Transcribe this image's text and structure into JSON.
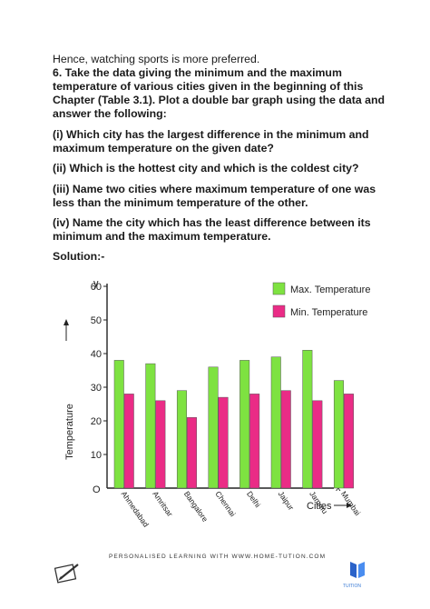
{
  "text": {
    "intro": "Hence, watching sports is more preferred.",
    "question_6": "6. Take the data giving the minimum and the maximum temperature of various cities given in the beginning of this Chapter (Table 3.1). Plot a double bar graph using the data and answer the following:",
    "q_i": "(i) Which city has the largest difference in the minimum and maximum temperature on the given date?",
    "q_ii": "(ii) Which is the hottest city and which is the coldest city?",
    "q_iii": "(iii) Name two cities where maximum temperature of one was less than the minimum temperature of the other.",
    "q_iv": "(iv) Name the city which has the least difference between its minimum and the maximum temperature.",
    "solution": "Solution:-",
    "footer": "PERSONALISED LEARNING WITH WWW.HOME-TUTION.COM",
    "brand": "TUITION"
  },
  "colors": {
    "max": "#7ee241",
    "min": "#ea2c86",
    "axis": "#222222"
  },
  "chart_data": {
    "type": "bar",
    "categories": [
      "Ahmedabad",
      "Amritsar",
      "Bangalore",
      "Chennai",
      "Delhi",
      "Jaipur",
      "Jammu",
      "Mumbai"
    ],
    "series": [
      {
        "name": "Max. Temperature",
        "values": [
          38,
          37,
          29,
          36,
          38,
          39,
          41,
          32
        ]
      },
      {
        "name": "Min. Temperature",
        "values": [
          28,
          26,
          21,
          27,
          28,
          29,
          26,
          28
        ]
      }
    ],
    "ylim": [
      0,
      70
    ],
    "yticks": [
      "10",
      "20",
      "30",
      "40",
      "50",
      "60"
    ],
    "ylabel": "Temperature",
    "xlabel": "Cities",
    "y_axis_letter": "y",
    "x_axis_letter": "x",
    "origin_label": "O",
    "legend": "top-right"
  }
}
